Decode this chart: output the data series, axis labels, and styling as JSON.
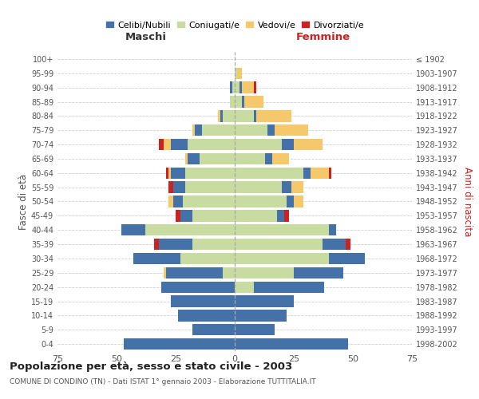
{
  "age_groups": [
    "0-4",
    "5-9",
    "10-14",
    "15-19",
    "20-24",
    "25-29",
    "30-34",
    "35-39",
    "40-44",
    "45-49",
    "50-54",
    "55-59",
    "60-64",
    "65-69",
    "70-74",
    "75-79",
    "80-84",
    "85-89",
    "90-94",
    "95-99",
    "100+"
  ],
  "birth_years": [
    "1998-2002",
    "1993-1997",
    "1988-1992",
    "1983-1987",
    "1978-1982",
    "1973-1977",
    "1968-1972",
    "1963-1967",
    "1958-1962",
    "1953-1957",
    "1948-1952",
    "1943-1947",
    "1938-1942",
    "1933-1937",
    "1928-1932",
    "1923-1927",
    "1918-1922",
    "1913-1917",
    "1908-1912",
    "1903-1907",
    "≤ 1902"
  ],
  "males": {
    "celibi": [
      47,
      18,
      24,
      27,
      31,
      24,
      20,
      14,
      10,
      5,
      4,
      5,
      6,
      5,
      7,
      3,
      1,
      0,
      1,
      0,
      0
    ],
    "coniugati": [
      0,
      0,
      0,
      0,
      0,
      5,
      23,
      18,
      38,
      18,
      22,
      21,
      21,
      15,
      20,
      14,
      5,
      2,
      1,
      0,
      0
    ],
    "vedovi": [
      0,
      0,
      0,
      0,
      0,
      1,
      0,
      0,
      0,
      0,
      2,
      0,
      1,
      1,
      3,
      1,
      1,
      0,
      0,
      0,
      0
    ],
    "divorziati": [
      0,
      0,
      0,
      0,
      0,
      0,
      0,
      2,
      0,
      2,
      0,
      2,
      1,
      0,
      2,
      0,
      0,
      0,
      0,
      0,
      0
    ]
  },
  "females": {
    "nubili": [
      48,
      17,
      22,
      25,
      30,
      21,
      15,
      10,
      3,
      3,
      3,
      4,
      3,
      3,
      5,
      3,
      1,
      1,
      1,
      0,
      0
    ],
    "coniugate": [
      0,
      0,
      0,
      0,
      8,
      25,
      40,
      37,
      40,
      18,
      22,
      20,
      29,
      13,
      20,
      14,
      8,
      3,
      2,
      1,
      0
    ],
    "vedove": [
      0,
      0,
      0,
      0,
      0,
      0,
      0,
      0,
      0,
      0,
      4,
      5,
      8,
      7,
      12,
      14,
      15,
      8,
      5,
      2,
      0
    ],
    "divorziate": [
      0,
      0,
      0,
      0,
      0,
      0,
      0,
      2,
      0,
      2,
      0,
      0,
      1,
      0,
      0,
      0,
      0,
      0,
      1,
      0,
      0
    ]
  },
  "colors": {
    "celibi": "#4472a8",
    "coniugati": "#c8dba0",
    "vedovi": "#f5c96b",
    "divorziati": "#cc2222"
  },
  "xlim": 75,
  "title": "Popolazione per età, sesso e stato civile - 2003",
  "subtitle": "COMUNE DI CONDINO (TN) - Dati ISTAT 1° gennaio 2003 - Elaborazione TUTTITALIA.IT",
  "xlabel_left": "Maschi",
  "xlabel_right": "Femmine",
  "ylabel_left": "Fasce di età",
  "ylabel_right": "Anni di nascita",
  "legend_labels": [
    "Celibi/Nubili",
    "Coniugati/e",
    "Vedovi/e",
    "Divorziati/e"
  ],
  "background_color": "#ffffff",
  "grid_color": "#cccccc"
}
